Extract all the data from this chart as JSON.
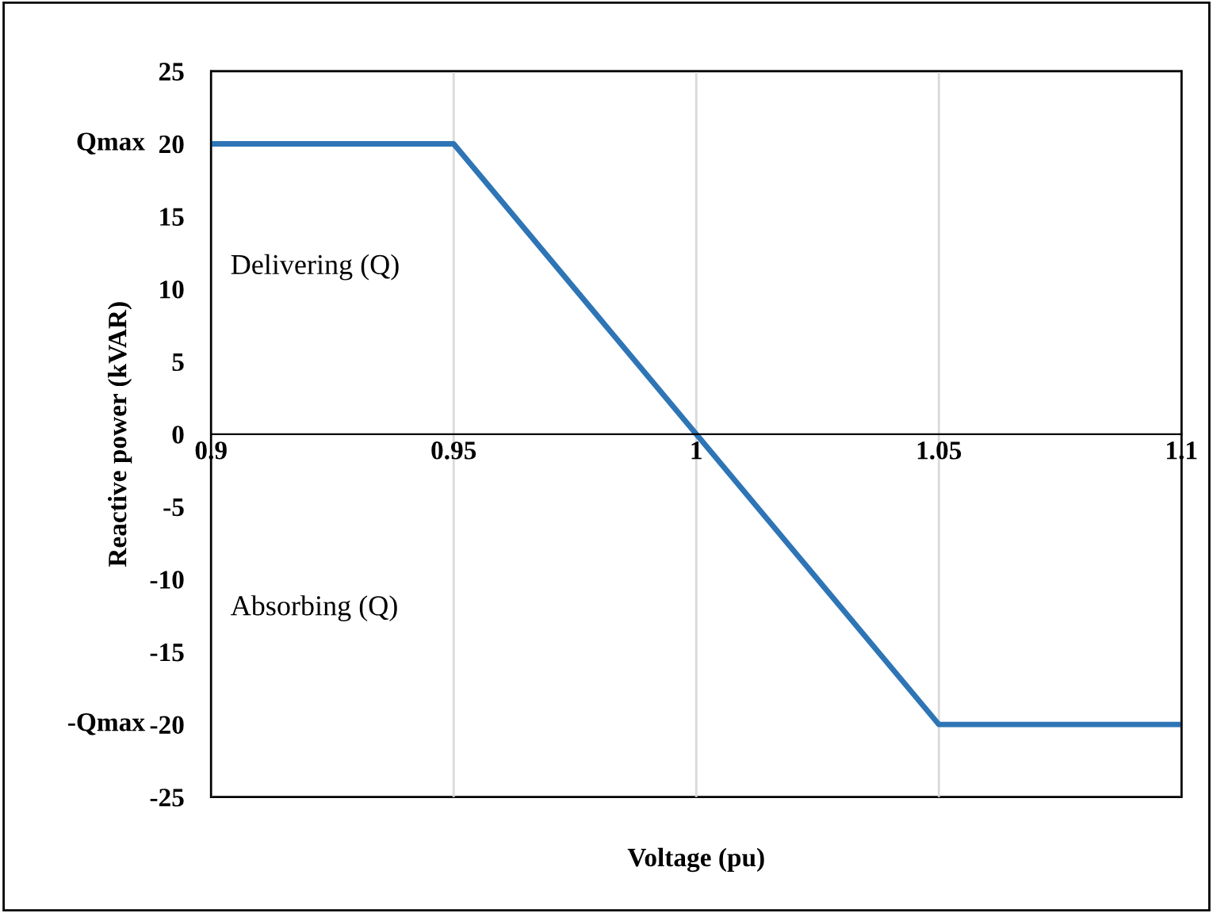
{
  "chart_data": {
    "type": "line",
    "xlabel": "Voltage (pu)",
    "ylabel": "Reactive power (kVAR)",
    "x": [
      0.9,
      0.95,
      1.05,
      1.1
    ],
    "series": [
      {
        "color": "#2e75b6",
        "values": [
          20,
          20,
          -20,
          -20
        ]
      }
    ],
    "xlim": [
      0.9,
      1.1
    ],
    "xticks": [
      0.9,
      0.95,
      1,
      1.05,
      1.1
    ],
    "ylim": [
      -25,
      25
    ],
    "yticks": [
      -25,
      -20,
      -15,
      -10,
      -5,
      0,
      5,
      10,
      15,
      20,
      25
    ],
    "grid": "x",
    "legend": false,
    "marker": "none",
    "line_style": "solid",
    "annotations": [
      "Qmax",
      "-Qmax",
      "Delivering (Q)",
      "Absorbing (Q)"
    ]
  }
}
